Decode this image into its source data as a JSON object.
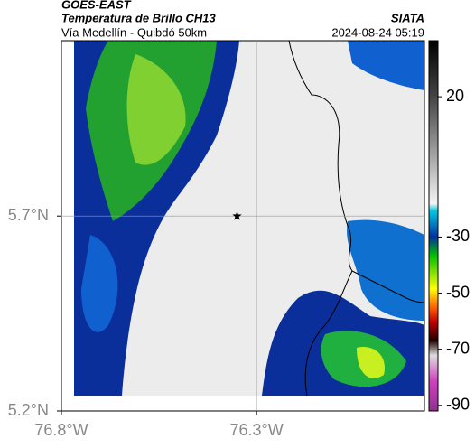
{
  "header": {
    "title": "GOES-EAST",
    "subtitle": "Temperatura de Brillo CH13",
    "route": "Vía Medellín - Quibdó 50km",
    "source": "SIATA",
    "timestamp": "2024-08-24 05:19"
  },
  "map": {
    "xlim": [
      -76.8,
      -75.87
    ],
    "ylim": [
      5.2,
      6.15
    ],
    "xticks": [
      {
        "value": -76.8,
        "label": "76.8°W"
      },
      {
        "value": -76.3,
        "label": "76.3°W"
      }
    ],
    "yticks": [
      {
        "value": 5.2,
        "label": "5.2°N"
      },
      {
        "value": 5.7,
        "label": "5.7°N"
      }
    ],
    "grid": true,
    "marker": {
      "lon": -76.35,
      "lat": 5.7
    }
  },
  "colorbar": {
    "clim": [
      40,
      -92
    ],
    "ticks": [
      20,
      -30,
      -50,
      -70,
      -90
    ]
  }
}
